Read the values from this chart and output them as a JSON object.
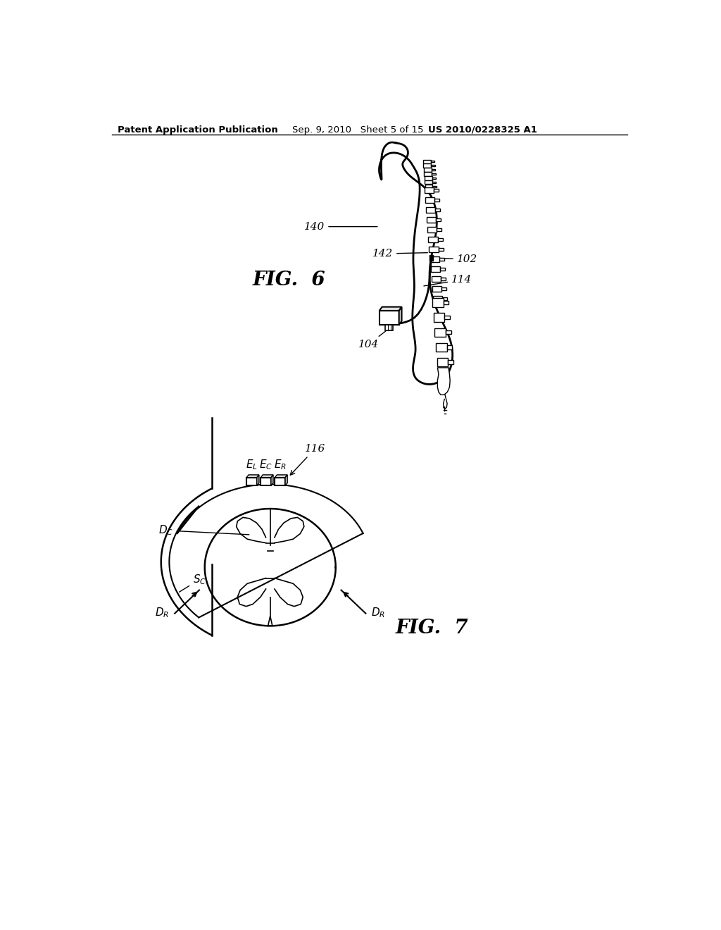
{
  "bg_color": "#ffffff",
  "line_color": "#000000",
  "header_text": "Patent Application Publication      Sep. 9, 2010    Sheet 5 of 15        US 2010/0228325 A1",
  "fig6_label": "FIG.  6",
  "fig7_label": "FIG.  7",
  "label_140": "140",
  "label_142": "142",
  "label_102": "102",
  "label_114": "114",
  "label_104": "104",
  "label_116": "116"
}
